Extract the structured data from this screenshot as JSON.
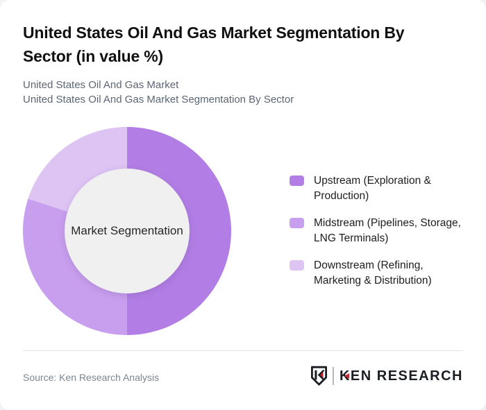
{
  "page": {
    "background_color": "#f1f2f4",
    "card_color": "#ffffff"
  },
  "header": {
    "title": "United States Oil And Gas Market Segmentation By Sector (in value %)",
    "subtitle_line1": "United States Oil And Gas Market",
    "subtitle_line2": "United States Oil And Gas Market Segmentation By Sector"
  },
  "chart_data": {
    "type": "pie",
    "variant": "donut",
    "title": "United States Oil And Gas Market Segmentation By Sector (in value %)",
    "center_label": "Market Segmentation",
    "categories": [
      "Upstream (Exploration & Production)",
      "Midstream (Pipelines, Storage, LNG Terminals)",
      "Downstream (Refining, Marketing & Distribution)"
    ],
    "values": [
      50,
      30,
      20
    ],
    "unit": "% of value",
    "colors": [
      "#b27ee5",
      "#c89fee",
      "#ddc4f3"
    ],
    "inner_circle_color": "#f0f0f0",
    "start_angle_deg": 0,
    "direction": "clockwise",
    "legend_position": "right"
  },
  "footer": {
    "source": "Source: Ken Research Analysis",
    "brand_badge_letter": "K",
    "brand_k": "K",
    "brand_rest": "EN RESEARCH",
    "brand_full": "KEN RESEARCH",
    "brand_accent_red": "#c4282d",
    "brand_dark": "#1b1e23"
  }
}
